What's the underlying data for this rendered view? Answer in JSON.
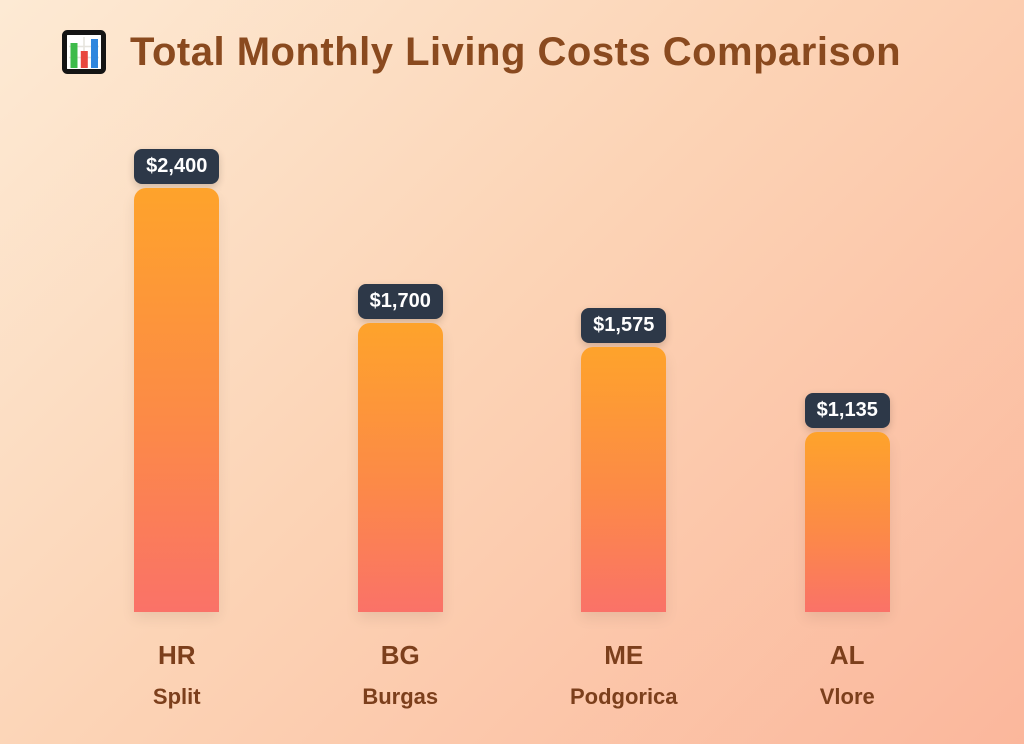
{
  "header": {
    "title": "Total Monthly Living Costs Comparison",
    "icon": "bar-chart-icon"
  },
  "chart_data": {
    "type": "bar",
    "title": "Total Monthly Living Costs Comparison",
    "orientation": "vertical",
    "categories": [
      "HR",
      "BG",
      "ME",
      "AL"
    ],
    "subcategories": [
      "Split",
      "Burgas",
      "Podgorica",
      "Vlore"
    ],
    "values": [
      2400,
      1700,
      1575,
      1135
    ],
    "value_labels": [
      "$2,400",
      "$1,700",
      "$1,575",
      "$1,135"
    ],
    "ylim": [
      0,
      2400
    ],
    "grid": false,
    "legend": false,
    "axes_shown": false
  },
  "colors": {
    "background_gradient_start": "#fdead4",
    "background_gradient_end": "#fbb79c",
    "bar_gradient_top": "#fea32b",
    "bar_gradient_bottom": "#fa7268",
    "badge_background": "#2d3848",
    "badge_text": "#ffffff",
    "title_text": "#8a4a1f",
    "label_text": "#7c3f1c",
    "icon_bar_green": "#3dbb4a",
    "icon_bar_red": "#e8483f",
    "icon_bar_blue": "#2e86de"
  }
}
